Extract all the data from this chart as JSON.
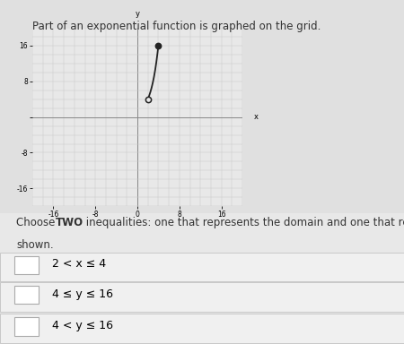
{
  "title": "Part of an exponential function is graphed on the grid.",
  "graph_xlim": [
    -20,
    20
  ],
  "graph_ylim": [
    -20,
    20
  ],
  "x_ticks": [
    -16,
    -8,
    0,
    8,
    16
  ],
  "y_ticks": [
    -16,
    -8,
    0,
    8,
    16
  ],
  "curve_x_start": 2,
  "curve_x_end": 4,
  "base": 2,
  "open_point": [
    2,
    4
  ],
  "closed_point": [
    4,
    16
  ],
  "curve_color": "#222222",
  "grid_color": "#c8c8c8",
  "bg_color": "#e8e8e8",
  "outer_bg": "#c8c8c8",
  "page_bg": "#e0e0e0",
  "checkbox_items": [
    "2 < x ≤ 4",
    "4 ≤ y ≤ 16",
    "4 < y ≤ 16"
  ],
  "tick_fontsize": 5.5,
  "title_fontsize": 8.5,
  "choose_fontsize": 8.5,
  "item_fontsize": 9.0
}
